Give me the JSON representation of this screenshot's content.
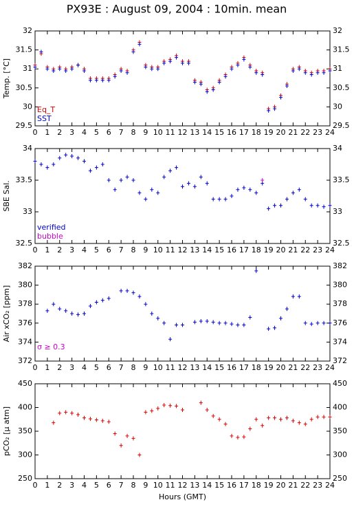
{
  "chart_data": [
    {
      "type": "scatter",
      "title": "PX93E : August 09, 2004 : 10min. mean",
      "ylabel": "Temp. [°C]",
      "legend": "lower left",
      "xlim": [
        0,
        24
      ],
      "xticks": [
        0,
        1,
        2,
        3,
        4,
        5,
        6,
        7,
        8,
        9,
        10,
        11,
        12,
        13,
        14,
        15,
        16,
        17,
        18,
        19,
        20,
        21,
        22,
        23,
        24
      ],
      "ylim": [
        29.5,
        32
      ],
      "yticks": [
        29.5,
        30,
        30.5,
        31,
        31.5,
        32
      ],
      "x": [
        0,
        0.5,
        1,
        1.5,
        2,
        2.5,
        3,
        3.5,
        4,
        4.5,
        5,
        5.5,
        6,
        6.5,
        7,
        7.5,
        8,
        8.5,
        9,
        9.5,
        10,
        10.5,
        11,
        11.5,
        12,
        12.5,
        13,
        13.5,
        14,
        14.5,
        15,
        15.5,
        16,
        16.5,
        17,
        17.5,
        18,
        18.5,
        19,
        19.5,
        20,
        20.5,
        21,
        21.5,
        22,
        22.5,
        23,
        23.5,
        24
      ],
      "series": [
        {
          "name": "Eq_T",
          "color": "#dd0000",
          "values": [
            31.1,
            31.4,
            31.05,
            31.0,
            31.05,
            31.0,
            31.05,
            31.1,
            31.0,
            30.75,
            30.75,
            30.75,
            30.75,
            30.85,
            31.0,
            30.95,
            31.5,
            31.7,
            31.1,
            31.05,
            31.05,
            31.2,
            31.25,
            31.35,
            31.2,
            31.2,
            30.7,
            30.65,
            30.45,
            30.5,
            30.7,
            30.85,
            31.05,
            31.15,
            31.3,
            31.1,
            30.95,
            30.9,
            29.95,
            30.0,
            30.3,
            30.6,
            31.0,
            31.05,
            30.95,
            30.9,
            30.95,
            30.95,
            31.0
          ]
        },
        {
          "name": "SST",
          "color": "#0000cc",
          "values": [
            31.05,
            31.45,
            31.0,
            30.95,
            31.0,
            30.95,
            31.0,
            31.1,
            30.95,
            30.7,
            30.7,
            30.7,
            30.7,
            30.8,
            30.95,
            30.9,
            31.45,
            31.65,
            31.05,
            31.0,
            31.0,
            31.15,
            31.2,
            31.3,
            31.15,
            31.15,
            30.65,
            30.6,
            30.4,
            30.45,
            30.65,
            30.8,
            31.0,
            31.1,
            31.25,
            31.05,
            30.9,
            30.85,
            29.9,
            29.95,
            30.25,
            30.55,
            30.95,
            31.0,
            30.9,
            30.85,
            30.9,
            30.9,
            30.95
          ]
        }
      ]
    },
    {
      "type": "scatter",
      "ylabel": "SBE Sal.",
      "legend": "lower left",
      "xlim": [
        0,
        24
      ],
      "xticks": [
        0,
        1,
        2,
        3,
        4,
        5,
        6,
        7,
        8,
        9,
        10,
        11,
        12,
        13,
        14,
        15,
        16,
        17,
        18,
        19,
        20,
        21,
        22,
        23,
        24
      ],
      "ylim": [
        32.5,
        34
      ],
      "yticks": [
        32.5,
        33,
        33.5,
        34
      ],
      "x": [
        0,
        0.5,
        1,
        1.5,
        2,
        2.5,
        3,
        3.5,
        4,
        4.5,
        5,
        5.5,
        6,
        6.5,
        7,
        7.5,
        8,
        8.5,
        9,
        9.5,
        10,
        10.5,
        11,
        11.5,
        12,
        12.5,
        13,
        13.5,
        14,
        14.5,
        15,
        15.5,
        16,
        16.5,
        17,
        17.5,
        18,
        18.5,
        19,
        19.5,
        20,
        20.5,
        21,
        21.5,
        22,
        22.5,
        23,
        23.5,
        24
      ],
      "series": [
        {
          "name": "verified",
          "color": "#0000cc",
          "values": [
            33.8,
            33.75,
            33.7,
            33.75,
            33.85,
            33.9,
            33.88,
            33.85,
            33.8,
            33.65,
            33.7,
            33.75,
            33.5,
            33.35,
            33.5,
            33.55,
            33.5,
            33.3,
            33.2,
            33.35,
            33.3,
            33.55,
            33.65,
            33.7,
            33.4,
            33.45,
            33.4,
            33.55,
            33.45,
            33.2,
            33.2,
            33.2,
            33.25,
            33.35,
            33.38,
            33.35,
            33.3,
            33.45,
            33.05,
            33.1,
            33.1,
            33.2,
            33.3,
            33.35,
            33.2,
            33.1,
            33.1,
            33.08,
            33.1
          ]
        },
        {
          "name": "bubble",
          "color": "#cc00cc",
          "values": [
            null,
            null,
            null,
            null,
            null,
            null,
            null,
            null,
            null,
            null,
            null,
            null,
            null,
            null,
            null,
            null,
            null,
            null,
            null,
            null,
            null,
            null,
            null,
            null,
            null,
            null,
            null,
            null,
            null,
            null,
            null,
            null,
            null,
            null,
            null,
            null,
            null,
            33.5,
            null,
            null,
            null,
            null,
            null,
            null,
            null,
            null,
            null,
            null,
            null
          ]
        }
      ]
    },
    {
      "type": "scatter",
      "ylabel": "Air xCO₂ [ppm]",
      "annotation": "σ ≥ 0.3",
      "annotation_color": "#cc00cc",
      "xlim": [
        0,
        24
      ],
      "xticks": [
        0,
        1,
        2,
        3,
        4,
        5,
        6,
        7,
        8,
        9,
        10,
        11,
        12,
        13,
        14,
        15,
        16,
        17,
        18,
        19,
        20,
        21,
        22,
        23,
        24
      ],
      "ylim": [
        372,
        382
      ],
      "yticks": [
        372,
        374,
        376,
        378,
        380,
        382
      ],
      "x": [
        0,
        0.5,
        1,
        1.5,
        2,
        2.5,
        3,
        3.5,
        4,
        4.5,
        5,
        5.5,
        6,
        6.5,
        7,
        7.5,
        8,
        8.5,
        9,
        9.5,
        10,
        10.5,
        11,
        11.5,
        12,
        12.5,
        13,
        13.5,
        14,
        14.5,
        15,
        15.5,
        16,
        16.5,
        17,
        17.5,
        18,
        18.5,
        19,
        19.5,
        20,
        20.5,
        21,
        21.5,
        22,
        22.5,
        23,
        23.5,
        24
      ],
      "series": [
        {
          "color": "#0000cc",
          "values": [
            null,
            null,
            377.3,
            378.0,
            377.5,
            377.3,
            377.0,
            376.9,
            377.0,
            377.8,
            378.2,
            378.4,
            378.6,
            null,
            379.4,
            379.4,
            379.2,
            378.8,
            378.0,
            377.0,
            376.5,
            376.0,
            374.3,
            375.8,
            375.8,
            null,
            376.1,
            376.2,
            376.2,
            376.1,
            376.0,
            376.0,
            375.9,
            375.8,
            375.8,
            376.6,
            381.5,
            null,
            375.4,
            375.5,
            376.5,
            377.5,
            378.8,
            378.8,
            376.0,
            375.9,
            376.0,
            376.0,
            376.0
          ]
        }
      ]
    },
    {
      "type": "scatter",
      "ylabel": "pCO₂ [µ atm]",
      "xlabel": "Hours (GMT)",
      "xlim": [
        0,
        24
      ],
      "xticks": [
        0,
        1,
        2,
        3,
        4,
        5,
        6,
        7,
        8,
        9,
        10,
        11,
        12,
        13,
        14,
        15,
        16,
        17,
        18,
        19,
        20,
        21,
        22,
        23,
        24
      ],
      "ylim": [
        250,
        450
      ],
      "yticks": [
        250,
        300,
        350,
        400,
        450
      ],
      "x": [
        0,
        0.5,
        1,
        1.5,
        2,
        2.5,
        3,
        3.5,
        4,
        4.5,
        5,
        5.5,
        6,
        6.5,
        7,
        7.5,
        8,
        8.5,
        9,
        9.5,
        10,
        10.5,
        11,
        11.5,
        12,
        12.5,
        13,
        13.5,
        14,
        14.5,
        15,
        15.5,
        16,
        16.5,
        17,
        17.5,
        18,
        18.5,
        19,
        19.5,
        20,
        20.5,
        21,
        21.5,
        22,
        22.5,
        23,
        23.5,
        24
      ],
      "series": [
        {
          "color": "#dd0000",
          "values": [
            null,
            null,
            null,
            368,
            388,
            390,
            388,
            385,
            378,
            376,
            374,
            372,
            370,
            345,
            320,
            340,
            335,
            300,
            390,
            393,
            398,
            405,
            404,
            403,
            395,
            null,
            null,
            410,
            395,
            382,
            375,
            365,
            340,
            337,
            338,
            355,
            375,
            362,
            378,
            378,
            375,
            378,
            372,
            368,
            365,
            375,
            380,
            380,
            380
          ]
        }
      ]
    }
  ]
}
